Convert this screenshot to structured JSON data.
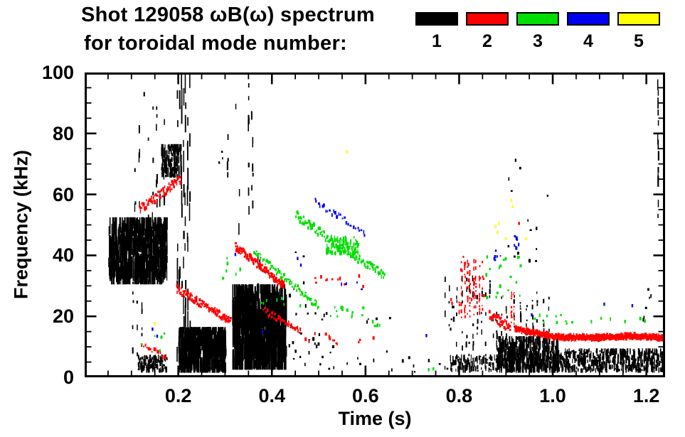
{
  "header": {
    "title_line1": "Shot 129058 ωB(ω) spectrum",
    "title_line2": "for toroidal mode number:"
  },
  "legend": {
    "items": [
      {
        "label": "1",
        "color": "#000000"
      },
      {
        "label": "2",
        "color": "#ff0000"
      },
      {
        "label": "3",
        "color": "#00dd00"
      },
      {
        "label": "4",
        "color": "#0000ee"
      },
      {
        "label": "5",
        "color": "#ffff00"
      }
    ]
  },
  "chart_data": {
    "type": "scatter",
    "title": "Shot 129058 ωB(ω) spectrum for toroidal mode number: 1 2 3 4 5",
    "xlabel": "Time (s)",
    "ylabel": "Frequency (kHz)",
    "xlim": [
      0,
      1.24
    ],
    "ylim": [
      0,
      100
    ],
    "x_major_ticks": [
      0.2,
      0.4,
      0.6,
      0.8,
      1.0,
      1.2
    ],
    "x_tick_labels": [
      "0.2",
      "0.4",
      "0.6",
      "0.8",
      "1.0",
      "1.2"
    ],
    "x_minor_step": 0.05,
    "y_major_ticks": [
      0,
      20,
      40,
      60,
      80,
      100
    ],
    "y_tick_labels": [
      "0",
      "20",
      "40",
      "60",
      "80",
      "100"
    ],
    "y_minor_step": 5,
    "grid": false,
    "legend_position": "top-right",
    "series": [
      {
        "name": "n=1",
        "mode": 1,
        "color": "#000000",
        "clusters": [
          {
            "type": "blob",
            "t": [
              0.05,
              0.175
            ],
            "f": [
              31,
              52
            ],
            "n": 600
          },
          {
            "type": "vstreaks",
            "t": [
              0.1,
              0.175
            ],
            "f": [
              50,
              93
            ],
            "k": 8,
            "seg": 0.25
          },
          {
            "type": "vstreaks",
            "t": [
              0.095,
              0.13
            ],
            "f": [
              5,
              32
            ],
            "k": 3,
            "seg": 0.3
          },
          {
            "type": "blob",
            "t": [
              0.163,
              0.205
            ],
            "f": [
              66,
              76
            ],
            "n": 110
          },
          {
            "type": "vstreaks",
            "t": [
              0.195,
              0.225
            ],
            "f": [
              2,
              97
            ],
            "k": 7,
            "seg": 0.5
          },
          {
            "type": "blob",
            "t": [
              0.2,
              0.3
            ],
            "f": [
              2,
              16
            ],
            "n": 700
          },
          {
            "type": "blob",
            "t": [
              0.113,
              0.175
            ],
            "f": [
              2,
              7
            ],
            "n": 130
          },
          {
            "type": "vstreaks",
            "t": [
              0.3,
              0.365
            ],
            "f": [
              42,
              92
            ],
            "k": 5,
            "seg": 0.22
          },
          {
            "type": "vstreaks",
            "t": [
              0.345,
              0.362
            ],
            "f": [
              45,
              97
            ],
            "k": 2,
            "seg": 0.3
          },
          {
            "type": "vstreaks",
            "t": [
              0.363,
              0.378
            ],
            "f": [
              3,
              44
            ],
            "k": 2,
            "seg": 0.35
          },
          {
            "type": "blob",
            "t": [
              0.315,
              0.43
            ],
            "f": [
              3,
              30
            ],
            "n": 700
          },
          {
            "type": "dots",
            "t": [
              0.43,
              0.53
            ],
            "f": [
              3,
              22
            ],
            "n": 26
          },
          {
            "type": "dots",
            "t": [
              0.43,
              0.48
            ],
            "f": [
              22,
              45
            ],
            "n": 6
          },
          {
            "type": "dots",
            "t": [
              0.53,
              0.78
            ],
            "f": [
              2,
              9
            ],
            "n": 14
          },
          {
            "type": "dots",
            "t": [
              0.6,
              0.66
            ],
            "f": [
              18,
              22
            ],
            "n": 4
          },
          {
            "type": "dots",
            "t": [
              0.28,
              0.3
            ],
            "f": [
              70,
              75
            ],
            "n": 3
          },
          {
            "type": "vstreaks",
            "t": [
              0.765,
              0.885
            ],
            "f": [
              2,
              33
            ],
            "k": 14,
            "seg": 0.3
          },
          {
            "type": "blob",
            "t": [
              0.78,
              0.88
            ],
            "f": [
              2,
              7
            ],
            "n": 110
          },
          {
            "type": "dots",
            "t": [
              0.78,
              0.787
            ],
            "f": [
              15,
              25
            ],
            "n": 4
          },
          {
            "type": "vstreaks",
            "t": [
              0.88,
              1.0
            ],
            "f": [
              7,
              28
            ],
            "k": 9,
            "seg": 0.35
          },
          {
            "type": "dots",
            "t": [
              0.9,
              0.99
            ],
            "f": [
              38,
              72
            ],
            "n": 15
          },
          {
            "type": "blob",
            "t": [
              0.88,
              1.01
            ],
            "f": [
              2,
              13
            ],
            "n": 420
          },
          {
            "type": "blob",
            "t": [
              1.0,
              1.238
            ],
            "f": [
              2,
              9
            ],
            "n": 460
          },
          {
            "type": "vstreaks",
            "t": [
              1.222,
              1.229
            ],
            "f": [
              52,
              100
            ],
            "k": 1,
            "seg": 0.85
          },
          {
            "type": "dots",
            "t": [
              1.19,
              1.21
            ],
            "f": [
              19,
              31
            ],
            "n": 6
          }
        ]
      },
      {
        "name": "n=2",
        "mode": 2,
        "color": "#ff0000",
        "clusters": [
          {
            "type": "trace",
            "pts": [
              [
                0.115,
                55
              ],
              [
                0.205,
                65
              ]
            ],
            "n": 70,
            "jitter": 1.5
          },
          {
            "type": "trace",
            "pts": [
              [
                0.195,
                29
              ],
              [
                0.31,
                18.5
              ]
            ],
            "n": 110,
            "jitter": 1.2
          },
          {
            "type": "trace",
            "pts": [
              [
                0.32,
                43
              ],
              [
                0.425,
                30
              ]
            ],
            "n": 120,
            "jitter": 1.2
          },
          {
            "type": "trace",
            "pts": [
              [
                0.38,
                22
              ],
              [
                0.46,
                15
              ]
            ],
            "n": 40,
            "jitter": 1.0
          },
          {
            "type": "dots",
            "t": [
              0.46,
              0.53
            ],
            "f": [
              12,
              16
            ],
            "n": 6
          },
          {
            "type": "dots",
            "t": [
              0.47,
              0.6
            ],
            "f": [
              30,
              34
            ],
            "n": 12
          },
          {
            "type": "dots",
            "t": [
              0.52,
              0.63
            ],
            "f": [
              10,
              14
            ],
            "n": 8
          },
          {
            "type": "trace",
            "pts": [
              [
                0.12,
                11
              ],
              [
                0.17,
                6.5
              ]
            ],
            "n": 14,
            "jitter": 0.8
          },
          {
            "type": "vstreaks",
            "t": [
              0.795,
              0.85
            ],
            "f": [
              19,
              38
            ],
            "k": 9,
            "seg": 0.5
          },
          {
            "type": "dots",
            "t": [
              0.8,
              0.87
            ],
            "f": [
              25,
              40
            ],
            "n": 10
          },
          {
            "type": "trace",
            "pts": [
              [
                0.862,
                21
              ],
              [
                0.908,
                16
              ]
            ],
            "n": 45,
            "jitter": 1.5
          },
          {
            "type": "vstreaks",
            "t": [
              0.908,
              0.918
            ],
            "f": [
              17,
              28
            ],
            "k": 2,
            "seg": 0.7
          },
          {
            "type": "trace",
            "pts": [
              [
                0.918,
                16
              ],
              [
                1.0,
                13.3
              ],
              [
                1.09,
                13
              ],
              [
                1.16,
                13.5
              ],
              [
                1.238,
                13
              ]
            ],
            "n": 650,
            "jitter": 0.7,
            "th": 1.1
          },
          {
            "type": "points",
            "pts": [
              [
                0.928,
                50.5
              ],
              [
                0.783,
                25.5
              ],
              [
                0.785,
                24.3
              ],
              [
                0.82,
                37
              ]
            ]
          }
        ]
      },
      {
        "name": "n=3",
        "mode": 3,
        "color": "#00dd00",
        "clusters": [
          {
            "type": "dots",
            "t": [
              0.115,
              0.17
            ],
            "f": [
              9,
              16
            ],
            "n": 5
          },
          {
            "type": "dots",
            "t": [
              0.29,
              0.335
            ],
            "f": [
              32,
              41
            ],
            "n": 6
          },
          {
            "type": "trace",
            "pts": [
              [
                0.36,
                41
              ],
              [
                0.5,
                23
              ]
            ],
            "n": 65,
            "jitter": 1.2
          },
          {
            "type": "dots",
            "t": [
              0.37,
              0.46
            ],
            "f": [
              23,
              28
            ],
            "n": 8
          },
          {
            "type": "trace",
            "pts": [
              [
                0.45,
                53
              ],
              [
                0.64,
                33
              ]
            ],
            "n": 110,
            "jitter": 1.4
          },
          {
            "type": "blob",
            "t": [
              0.515,
              0.585
            ],
            "f": [
              40.5,
              46
            ],
            "n": 90
          },
          {
            "type": "dots",
            "t": [
              0.515,
              0.6
            ],
            "f": [
              20,
              23.5
            ],
            "n": 14
          },
          {
            "type": "dots",
            "t": [
              0.6,
              0.65
            ],
            "f": [
              17,
              20
            ],
            "n": 5
          },
          {
            "type": "dots",
            "t": [
              0.855,
              0.94
            ],
            "f": [
              24,
              40
            ],
            "n": 18
          },
          {
            "type": "dots",
            "t": [
              0.94,
              1.05
            ],
            "f": [
              18,
              21
            ],
            "n": 10
          },
          {
            "type": "dots",
            "t": [
              1.05,
              1.22
            ],
            "f": [
              18.5,
              20
            ],
            "n": 6
          },
          {
            "type": "points",
            "pts": [
              [
                0.735,
                2.5
              ],
              [
                0.745,
                2.8
              ],
              [
                0.86,
                39.5
              ]
            ]
          }
        ]
      },
      {
        "name": "n=4",
        "mode": 4,
        "color": "#0000ee",
        "clusters": [
          {
            "type": "trace",
            "pts": [
              [
                0.488,
                58
              ],
              [
                0.6,
                47
              ]
            ],
            "n": 28,
            "jitter": 1.0
          },
          {
            "type": "dots",
            "t": [
              0.535,
              0.59
            ],
            "f": [
              29,
              31.5
            ],
            "n": 5
          },
          {
            "type": "dots",
            "t": [
              0.873,
              0.89
            ],
            "f": [
              38,
              42
            ],
            "n": 6
          },
          {
            "type": "dots",
            "t": [
              0.915,
              0.927
            ],
            "f": [
              42.5,
              47
            ],
            "n": 7
          },
          {
            "type": "points",
            "pts": [
              [
                1.11,
                24
              ],
              [
                1.17,
                23.5
              ],
              [
                0.73,
                13.7
              ],
              [
                0.322,
                40.3
              ],
              [
                0.455,
                39
              ],
              [
                0.462,
                36.8
              ],
              [
                0.38,
                15
              ],
              [
                0.145,
                15.8
              ],
              [
                0.155,
                13.5
              ],
              [
                0.955,
                20.5
              ]
            ]
          }
        ]
      },
      {
        "name": "n=5",
        "mode": 5,
        "color": "#ffff00",
        "clusters": [
          {
            "type": "points",
            "pts": [
              [
                0.56,
                74
              ],
              [
                0.878,
                49.5
              ],
              [
                0.882,
                47.5
              ],
              [
                0.885,
                50.5
              ],
              [
                0.9,
                45.5
              ],
              [
                0.943,
                45.5
              ],
              [
                0.912,
                58
              ],
              [
                0.914,
                56
              ],
              [
                0.15,
                17.7
              ]
            ]
          }
        ]
      }
    ]
  }
}
